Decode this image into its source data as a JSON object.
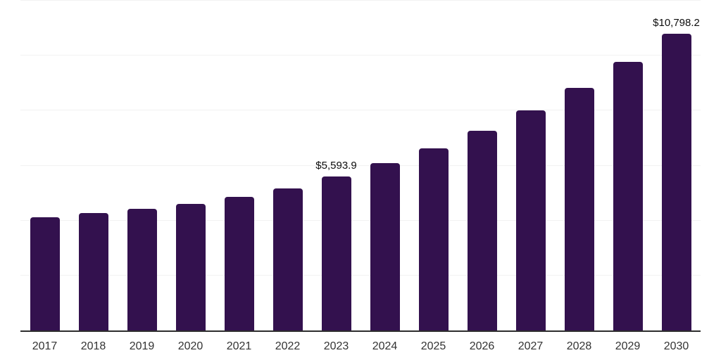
{
  "page": {
    "background": "#ffffff"
  },
  "chart_data": {
    "type": "bar",
    "title": "",
    "xlabel": "",
    "ylabel": "",
    "categories": [
      "2017",
      "2018",
      "2019",
      "2020",
      "2021",
      "2022",
      "2023",
      "2024",
      "2025",
      "2026",
      "2027",
      "2028",
      "2029",
      "2030"
    ],
    "values": [
      4120,
      4270,
      4430,
      4610,
      4865,
      5175,
      5593.9,
      6095,
      6635,
      7275,
      8015,
      8840,
      9785,
      10798.2
    ],
    "data_labels": [
      {
        "category": "2023",
        "text": "$5,593.9"
      },
      {
        "category": "2030",
        "text": "$10,798.2"
      }
    ],
    "ylim": [
      0,
      12000
    ],
    "gridline_step": 2000,
    "grid": "horizontal",
    "legend": "none",
    "y_axis_tick_labels": "none",
    "colors": {
      "bar": "#33114e",
      "axis_line": "#2d2d2d",
      "gridline": "#f2f2f2",
      "tick_label": "#333333",
      "data_label": "#0d0d0d"
    }
  }
}
